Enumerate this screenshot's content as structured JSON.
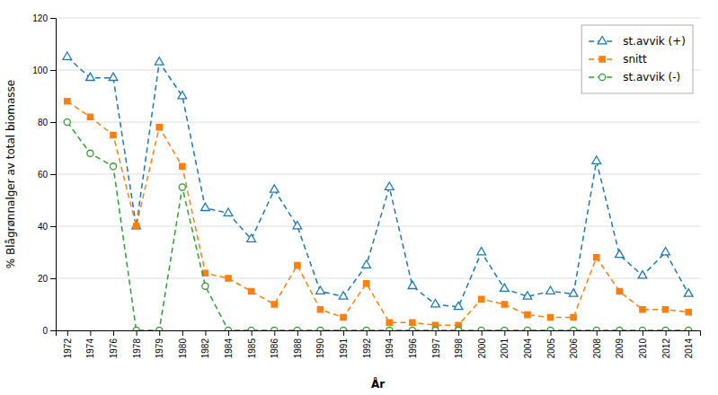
{
  "chart_data": {
    "type": "line",
    "categories": [
      "1972",
      "1974",
      "1976",
      "1978",
      "1979",
      "1980",
      "1982",
      "1984",
      "1985",
      "1986",
      "1988",
      "1990",
      "1991",
      "1992",
      "1994",
      "1996",
      "1997",
      "1998",
      "2000",
      "2001",
      "2004",
      "2005",
      "2006",
      "2008",
      "2009",
      "2010",
      "2012",
      "2014"
    ],
    "series": [
      {
        "name": "st.avvik (+)",
        "marker": "triangle",
        "line_style": "dashed",
        "values": [
          105,
          97,
          97,
          40,
          103,
          90,
          47,
          45,
          35,
          54,
          40,
          15,
          13,
          25,
          55,
          17,
          10,
          9,
          30,
          16,
          13,
          15,
          14,
          65,
          29,
          21,
          30,
          14
        ]
      },
      {
        "name": "snitt",
        "marker": "square",
        "line_style": "dashed",
        "values": [
          88,
          82,
          75,
          40,
          78,
          63,
          22,
          20,
          15,
          10,
          25,
          8,
          5,
          18,
          3,
          3,
          2,
          2,
          12,
          10,
          6,
          5,
          5,
          28,
          15,
          8,
          8,
          7
        ]
      },
      {
        "name": "st.avvik (-)",
        "marker": "circle",
        "line_style": "dashed",
        "values": [
          80,
          68,
          63,
          0,
          0,
          55,
          17,
          0,
          0,
          0,
          0,
          0,
          0,
          0,
          0,
          0,
          0,
          0,
          0,
          0,
          0,
          0,
          0,
          0,
          0,
          0,
          0,
          0
        ]
      }
    ],
    "ylabel": "% Blågrønnalger av total biomasse",
    "xlabel": "År",
    "ylim": [
      0,
      120
    ],
    "yticks": [
      0,
      20,
      40,
      60,
      80,
      100,
      120
    ],
    "grid": true,
    "legend": "top-right"
  }
}
